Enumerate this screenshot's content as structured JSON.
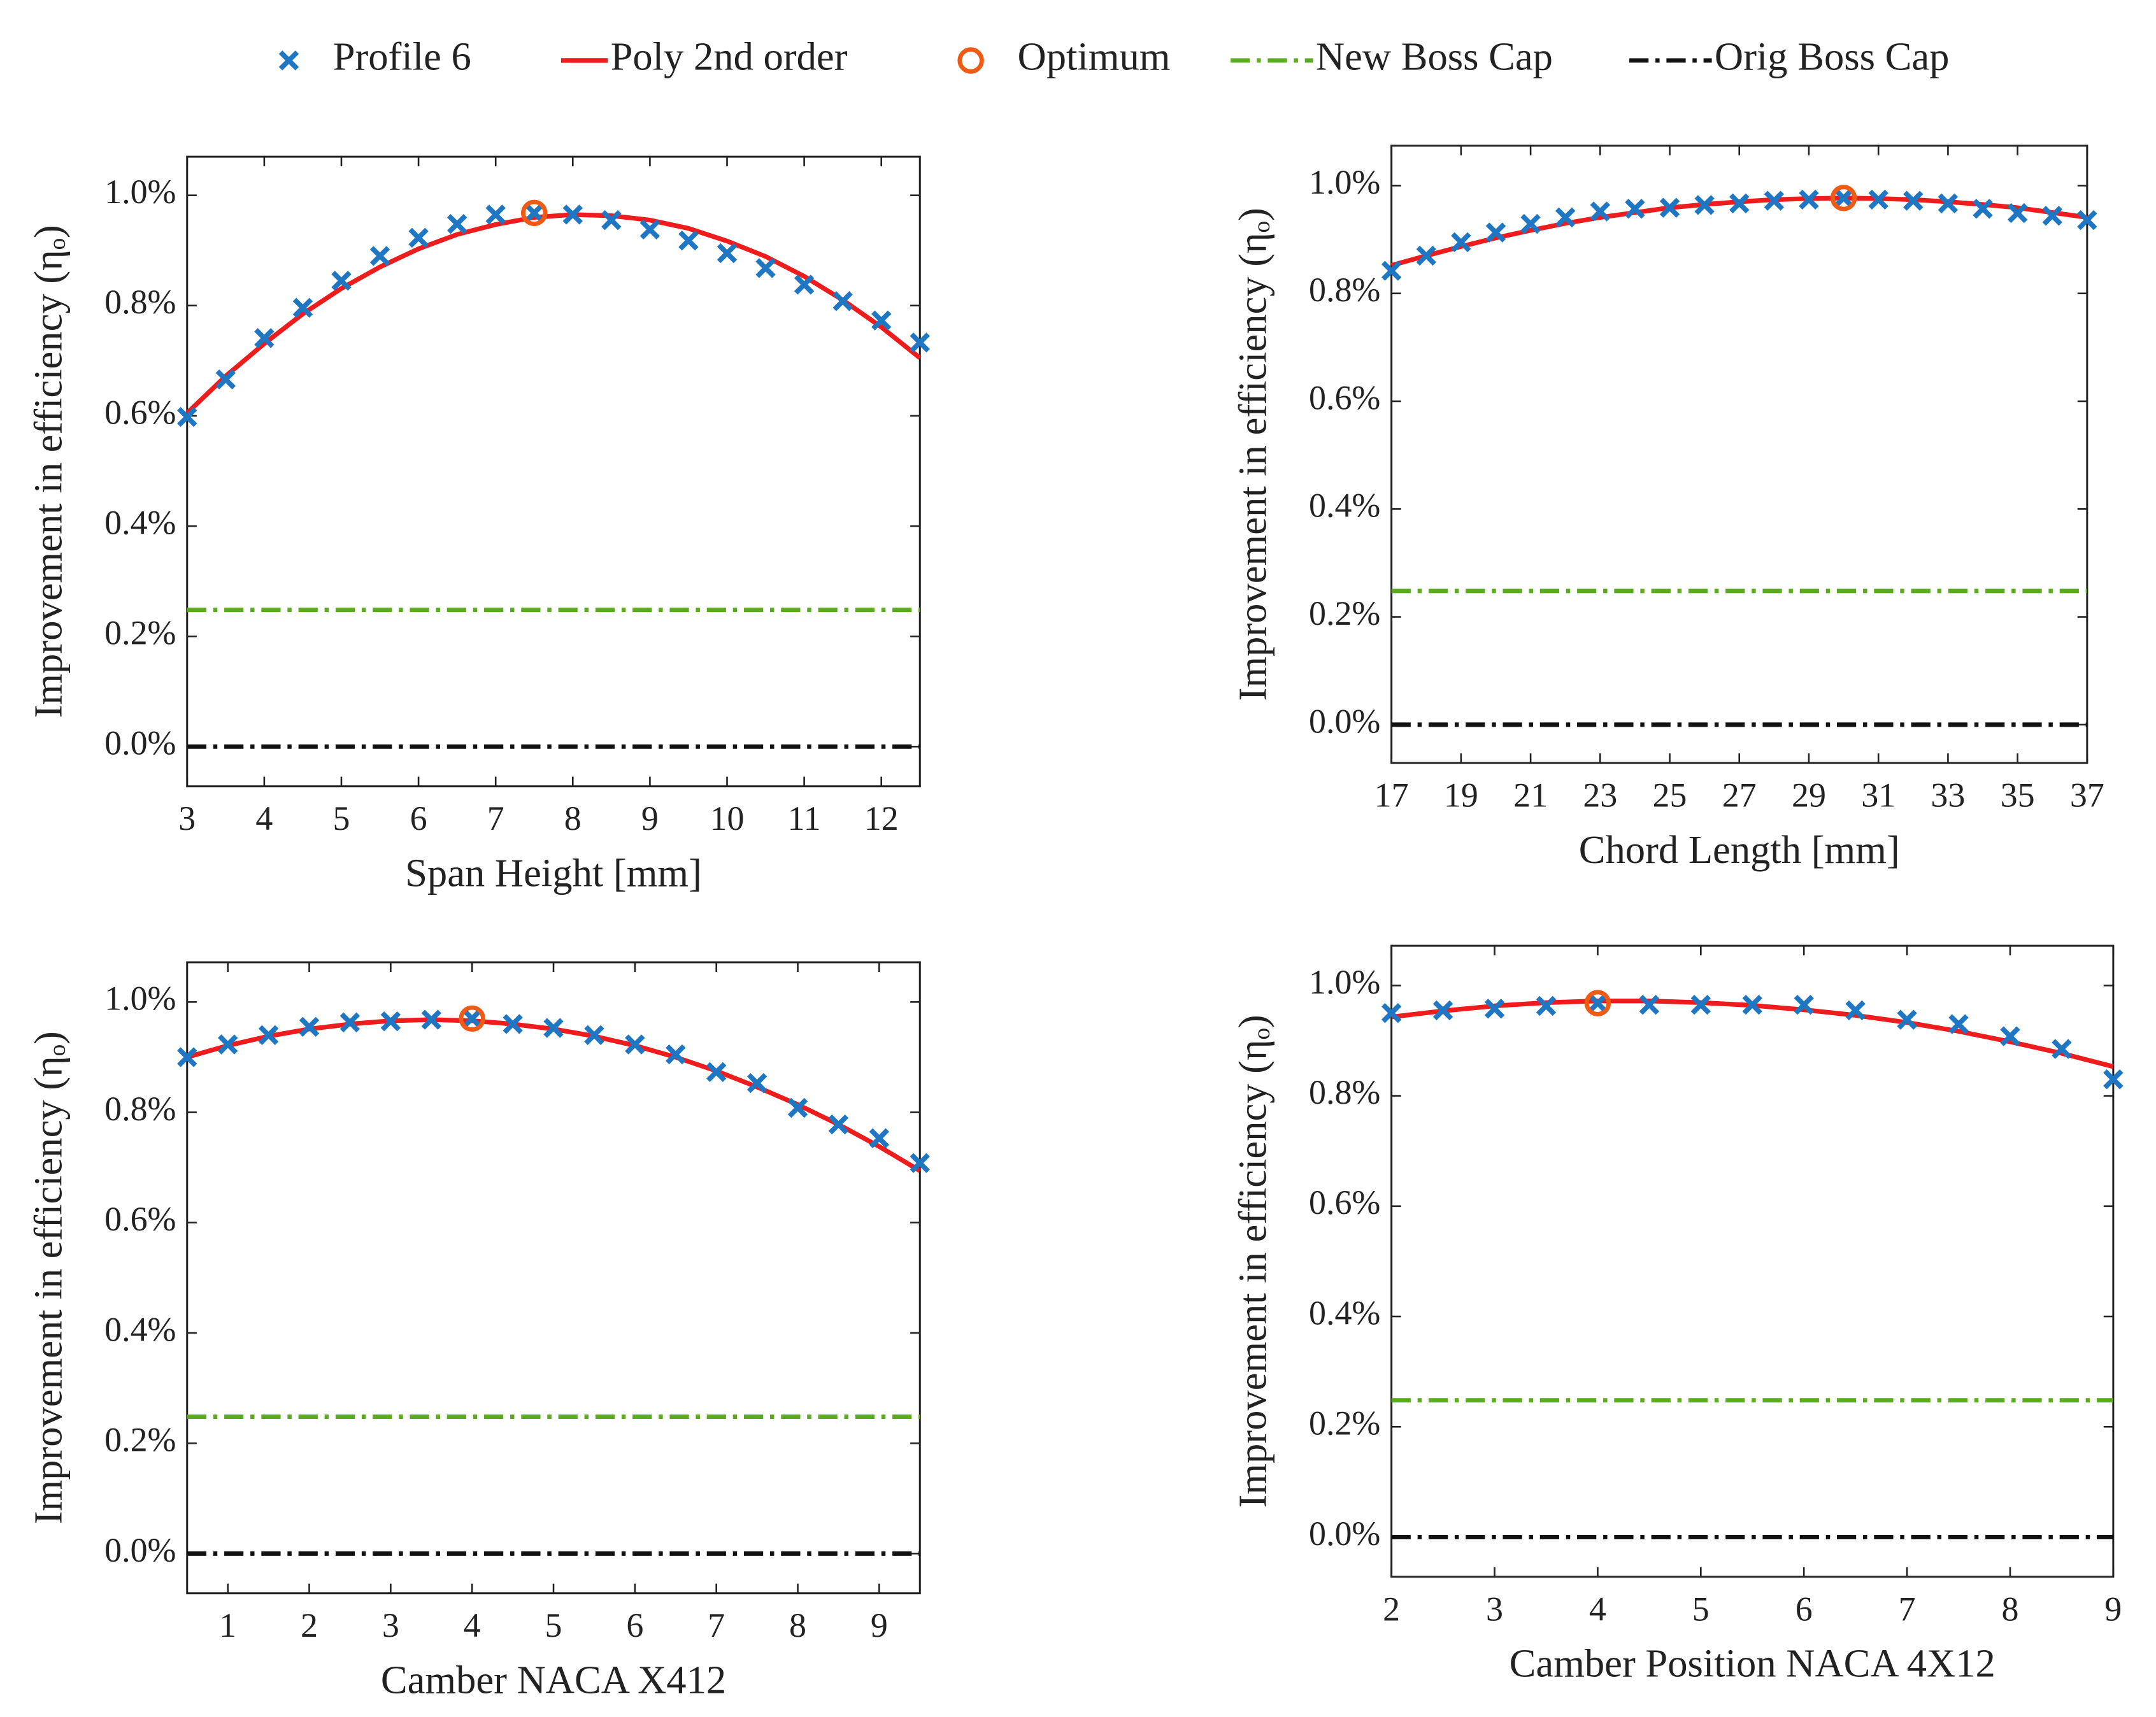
{
  "chart_data": [
    {
      "type": "line",
      "xlabel": "Span Height [mm]",
      "ylabel": "Improvement in efficiency (ηₒ)",
      "xlim": [
        3,
        12.5
      ],
      "xticks": [
        3,
        4,
        5,
        6,
        7,
        8,
        9,
        10,
        11,
        12
      ],
      "ylim": [
        -0.072,
        1.07
      ],
      "yticks": [
        {
          "value": 0,
          "label": "0.0%"
        },
        {
          "value": 0.2,
          "label": "0.2%"
        },
        {
          "value": 0.4,
          "label": "0.4%"
        },
        {
          "value": 0.6,
          "label": "0.6%"
        },
        {
          "value": 0.8,
          "label": "0.8%"
        },
        {
          "value": 1.0,
          "label": "1.0%"
        }
      ],
      "x": [
        3,
        3.5,
        4,
        4.5,
        5,
        5.5,
        6,
        6.5,
        7,
        7.5,
        8,
        8.5,
        9,
        9.5,
        10,
        10.5,
        11,
        11.5,
        12,
        12.5
      ],
      "series": [
        {
          "name": "Profile 6",
          "color": "#1f77c4",
          "marker": "x",
          "values": [
            0.598,
            0.666,
            0.741,
            0.796,
            0.845,
            0.89,
            0.923,
            0.948,
            0.965,
            0.968,
            0.965,
            0.955,
            0.938,
            0.918,
            0.895,
            0.868,
            0.838,
            0.808,
            0.773,
            0.733
          ]
        },
        {
          "name": "Poly 2nd order",
          "color": "#ee1c1c",
          "values": [
            0.605,
            0.672,
            0.731,
            0.785,
            0.831,
            0.87,
            0.903,
            0.929,
            0.947,
            0.96,
            0.965,
            0.963,
            0.955,
            0.94,
            0.917,
            0.889,
            0.853,
            0.81,
            0.761,
            0.705
          ]
        },
        {
          "name": "Optimum",
          "color": "#f05a14",
          "marker": "o",
          "x": 7.5,
          "y": 0.968
        },
        {
          "name": "New Boss Cap",
          "color": "#5aac1e",
          "hline": 0.248
        },
        {
          "name": "Orig Boss Cap",
          "color": "#111111",
          "hline": 0
        }
      ]
    },
    {
      "type": "line",
      "xlabel": "Chord Length [mm]",
      "ylabel": "Improvement in efficiency (ηₒ)",
      "xlim": [
        17,
        37
      ],
      "xticks": [
        17,
        19,
        21,
        23,
        25,
        27,
        29,
        31,
        33,
        35,
        37
      ],
      "ylim": [
        -0.071,
        1.074
      ],
      "yticks": [
        {
          "value": 0,
          "label": "0.0%"
        },
        {
          "value": 0.2,
          "label": "0.2%"
        },
        {
          "value": 0.4,
          "label": "0.4%"
        },
        {
          "value": 0.6,
          "label": "0.6%"
        },
        {
          "value": 0.8,
          "label": "0.8%"
        },
        {
          "value": 1.0,
          "label": "1.0%"
        }
      ],
      "x": [
        17,
        18,
        19,
        20,
        21,
        22,
        23,
        24,
        25,
        26,
        27,
        28,
        29,
        30,
        31,
        32,
        33,
        34,
        35,
        36,
        37
      ],
      "series": [
        {
          "color": "#1f77c4",
          "marker": "x",
          "values": [
            0.842,
            0.87,
            0.895,
            0.913,
            0.929,
            0.941,
            0.952,
            0.957,
            0.959,
            0.964,
            0.967,
            0.972,
            0.974,
            0.977,
            0.974,
            0.972,
            0.967,
            0.957,
            0.949,
            0.944,
            0.936
          ]
        },
        {
          "color": "#ee1c1c",
          "values": [
            0.852,
            0.87,
            0.887,
            0.903,
            0.917,
            0.93,
            0.941,
            0.95,
            0.959,
            0.965,
            0.97,
            0.974,
            0.976,
            0.977,
            0.976,
            0.974,
            0.97,
            0.965,
            0.959,
            0.95,
            0.941
          ]
        },
        {
          "color": "#f05a14",
          "marker": "o",
          "x": 30,
          "y": 0.977
        },
        {
          "color": "#5aac1e",
          "hline": 0.248
        },
        {
          "color": "#111111",
          "hline": 0
        }
      ]
    },
    {
      "type": "line",
      "xlabel": "Camber NACA X412",
      "ylabel": "Improvement in efficiency (ηₒ)",
      "xlim": [
        0.5,
        9.5
      ],
      "xticks": [
        1,
        2,
        3,
        4,
        5,
        6,
        7,
        8,
        9
      ],
      "ylim": [
        -0.072,
        1.072
      ],
      "yticks": [
        {
          "value": 0,
          "label": "0.0%"
        },
        {
          "value": 0.2,
          "label": "0.2%"
        },
        {
          "value": 0.4,
          "label": "0.4%"
        },
        {
          "value": 0.6,
          "label": "0.6%"
        },
        {
          "value": 0.8,
          "label": "0.8%"
        },
        {
          "value": 1.0,
          "label": "1.0%"
        }
      ],
      "x": [
        0.5,
        1,
        1.5,
        2,
        2.5,
        3,
        3.5,
        4,
        4.5,
        5,
        5.5,
        6,
        6.5,
        7,
        7.5,
        8,
        8.5,
        9,
        9.5
      ],
      "series": [
        {
          "color": "#1f77c4",
          "marker": "x",
          "values": [
            0.9,
            0.923,
            0.94,
            0.955,
            0.963,
            0.965,
            0.968,
            0.97,
            0.96,
            0.953,
            0.94,
            0.923,
            0.905,
            0.873,
            0.853,
            0.808,
            0.778,
            0.753,
            0.708
          ]
        },
        {
          "color": "#ee1c1c",
          "values": [
            0.9,
            0.921,
            0.938,
            0.951,
            0.96,
            0.966,
            0.968,
            0.966,
            0.96,
            0.951,
            0.938,
            0.921,
            0.9,
            0.875,
            0.846,
            0.814,
            0.778,
            0.738,
            0.694
          ]
        },
        {
          "color": "#f05a14",
          "marker": "o",
          "x": 4,
          "y": 0.97
        },
        {
          "color": "#5aac1e",
          "hline": 0.248
        },
        {
          "color": "#111111",
          "hline": 0
        }
      ]
    },
    {
      "type": "line",
      "xlabel": "Camber Position NACA 4X12",
      "ylabel": "Improvement in efficiency (ηₒ)",
      "xlim": [
        2,
        9
      ],
      "xticks": [
        2,
        3,
        4,
        5,
        6,
        7,
        8,
        9
      ],
      "ylim": [
        -0.072,
        1.072
      ],
      "yticks": [
        {
          "value": 0,
          "label": "0.0%"
        },
        {
          "value": 0.2,
          "label": "0.2%"
        },
        {
          "value": 0.4,
          "label": "0.4%"
        },
        {
          "value": 0.6,
          "label": "0.6%"
        },
        {
          "value": 0.8,
          "label": "0.8%"
        },
        {
          "value": 1.0,
          "label": "1.0%"
        }
      ],
      "x": [
        2,
        2.5,
        3,
        3.5,
        4,
        4.5,
        5,
        5.5,
        6,
        6.5,
        7,
        7.5,
        8,
        8.5,
        9
      ],
      "series": [
        {
          "color": "#1f77c4",
          "marker": "x",
          "values": [
            0.95,
            0.955,
            0.958,
            0.963,
            0.968,
            0.965,
            0.965,
            0.965,
            0.965,
            0.955,
            0.938,
            0.93,
            0.908,
            0.885,
            0.83
          ]
        },
        {
          "color": "#ee1c1c",
          "values": [
            0.943,
            0.954,
            0.963,
            0.969,
            0.972,
            0.972,
            0.969,
            0.964,
            0.956,
            0.946,
            0.933,
            0.917,
            0.898,
            0.877,
            0.853
          ]
        },
        {
          "color": "#f05a14",
          "marker": "o",
          "x": 4,
          "y": 0.968
        },
        {
          "color": "#5aac1e",
          "hline": 0.248
        },
        {
          "color": "#111111",
          "hline": 0
        }
      ]
    }
  ]
}
